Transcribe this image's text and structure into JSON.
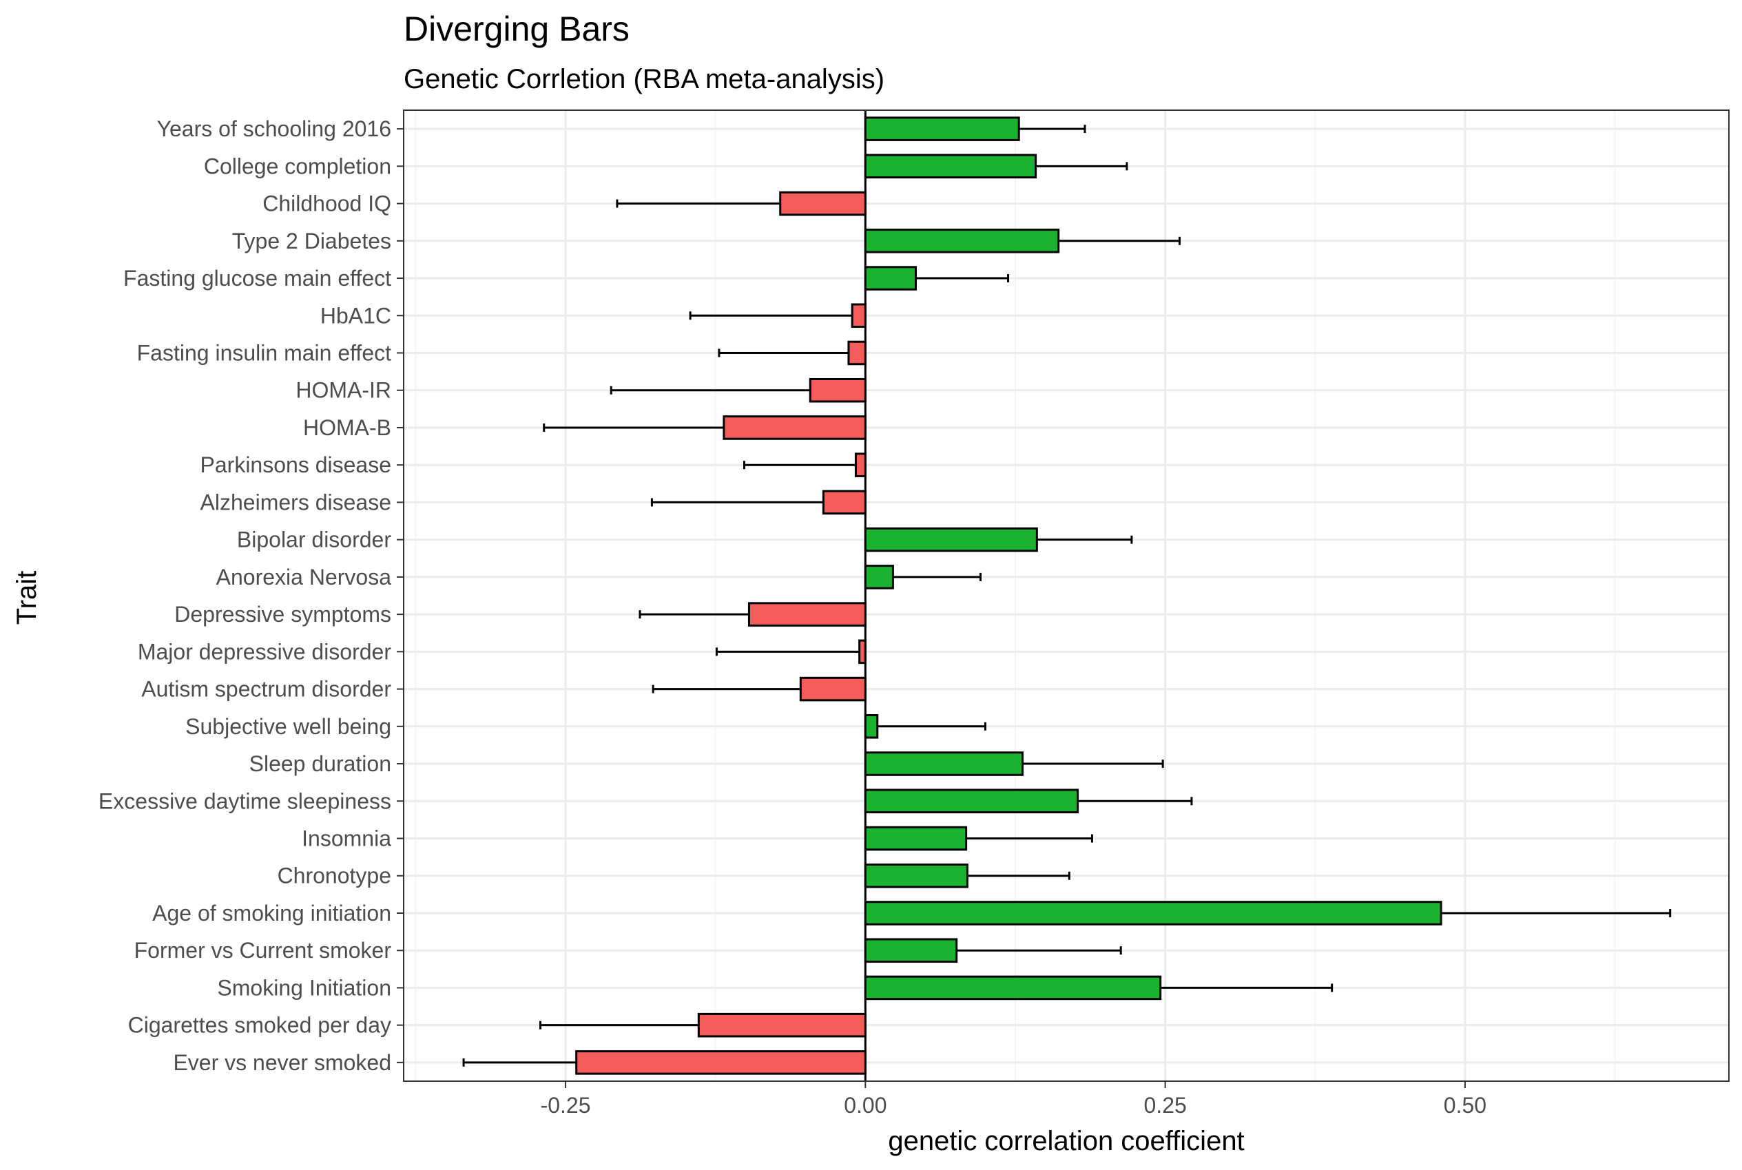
{
  "chart_data": {
    "type": "bar",
    "orientation": "horizontal",
    "title": "Diverging Bars",
    "subtitle": "Genetic Corrletion (RBA meta-analysis)",
    "xlabel": "genetic correlation coefficient",
    "ylabel": "Trait",
    "xlim": [
      -0.385,
      0.72
    ],
    "xticks": [
      -0.25,
      0.0,
      0.25,
      0.5
    ],
    "xtick_labels": [
      "-0.25",
      "0.00",
      "0.25",
      "0.50"
    ],
    "grid": true,
    "theme": "bw",
    "colors": {
      "positive": "#1ab22e",
      "negative": "#f45d5a",
      "outline": "#000000",
      "grid_major": "#ebebeb",
      "grid_minor": "#f5f5f5"
    },
    "categories": [
      "Years of schooling 2016",
      "College completion",
      "Childhood IQ",
      "Type 2 Diabetes",
      "Fasting glucose main effect",
      "HbA1C",
      "Fasting insulin main effect",
      "HOMA-IR",
      "HOMA-B",
      "Parkinsons disease",
      "Alzheimers disease",
      "Bipolar disorder",
      "Anorexia Nervosa",
      "Depressive symptoms",
      "Major depressive disorder",
      "Autism spectrum disorder",
      "Subjective well being",
      "Sleep duration",
      "Excessive daytime sleepiness",
      "Insomnia",
      "Chronotype",
      "Age of smoking initiation",
      "Former vs Current smoker",
      "Smoking Initiation",
      "Cigarettes smoked per day",
      "Ever vs never smoked"
    ],
    "values": [
      0.128,
      0.142,
      -0.071,
      0.161,
      0.042,
      -0.011,
      -0.014,
      -0.046,
      -0.118,
      -0.008,
      -0.035,
      0.143,
      0.023,
      -0.097,
      -0.005,
      -0.054,
      0.01,
      0.131,
      0.177,
      0.084,
      0.085,
      0.48,
      0.076,
      0.246,
      -0.139,
      -0.241
    ],
    "error_bar_ends": [
      0.183,
      0.218,
      -0.207,
      0.262,
      0.119,
      -0.146,
      -0.122,
      -0.212,
      -0.268,
      -0.101,
      -0.178,
      0.222,
      0.096,
      -0.188,
      -0.124,
      -0.177,
      0.1,
      0.248,
      0.272,
      0.189,
      0.17,
      0.671,
      0.213,
      0.389,
      -0.271,
      -0.335
    ]
  }
}
